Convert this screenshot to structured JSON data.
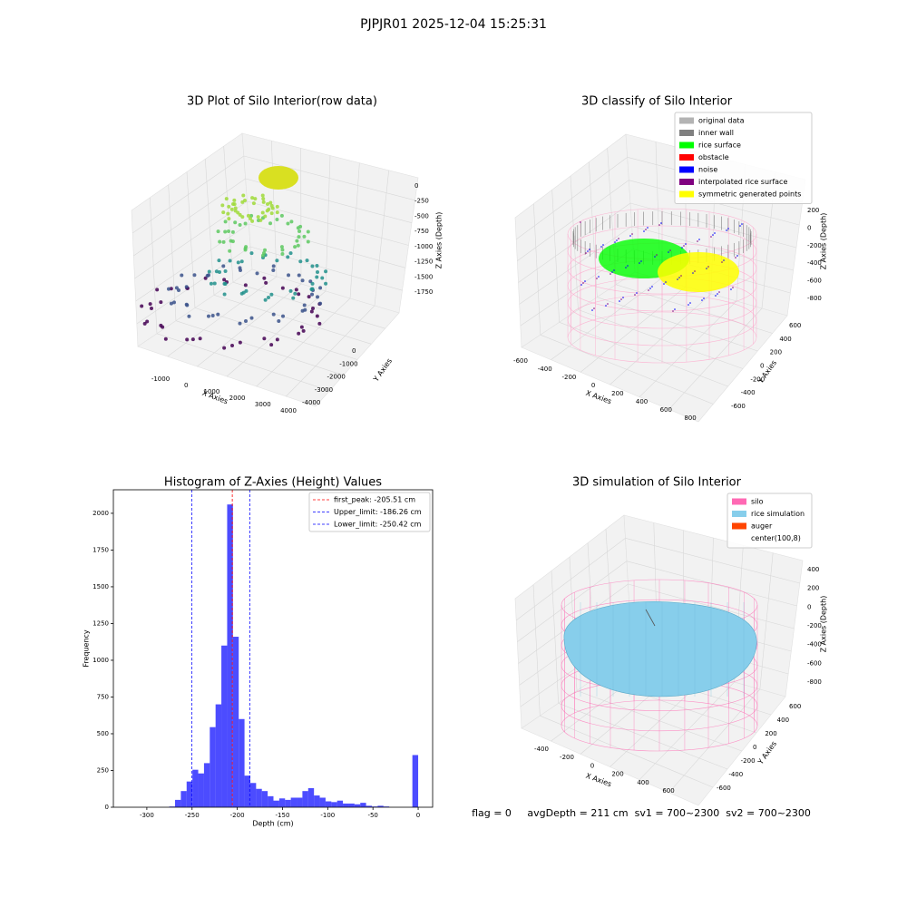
{
  "title": "PJPJR01 2025-12-04 15:25:31",
  "chart_data": [
    {
      "type": "scatter3d",
      "title": "3D Plot of Silo Interior(row data)",
      "xlabel": "X Axies",
      "ylabel": "Y Axies",
      "zlabel": "Z Axies (Depth)",
      "xticks": [
        -1000,
        0,
        1000,
        2000,
        3000,
        4000
      ],
      "yticks": [
        0,
        -1000,
        -2000,
        -3000,
        -4000
      ],
      "zticks": [
        0,
        -250,
        -500,
        -750,
        -1000,
        -1250,
        -1500,
        -1750
      ]
    },
    {
      "type": "classify3d",
      "title": "3D classify of Silo Interior",
      "xlabel": "X Axies",
      "ylabel": "Y Axies",
      "zlabel": "Z Axies (Depth)",
      "xticks": [
        -600,
        -400,
        -200,
        0,
        200,
        400,
        600,
        800
      ],
      "yticks": [
        600,
        400,
        200,
        0,
        -200,
        -400,
        -600
      ],
      "zticks": [
        200,
        0,
        -200,
        -400,
        -600,
        -800
      ],
      "legend": [
        {
          "name": "original data",
          "color": "#b3b3b3"
        },
        {
          "name": "inner wall",
          "color": "#808080"
        },
        {
          "name": "rice surface",
          "color": "#00ff00"
        },
        {
          "name": "obstacle",
          "color": "#ff0000"
        },
        {
          "name": "noise",
          "color": "#0000ff"
        },
        {
          "name": "interpolated rice surface",
          "color": "#800080"
        },
        {
          "name": "symmetric generated points",
          "color": "#ffff00"
        }
      ]
    },
    {
      "type": "histogram",
      "title": "Histogram of Z-Axies (Height) Values",
      "xlabel": "Depth (cm)",
      "ylabel": "Frequency",
      "color": "#0000ff",
      "bins": [
        -320,
        -313.6,
        -307.2,
        -300.8,
        -294.4,
        -288,
        -281.6,
        -275.2,
        -268.8,
        -262.4,
        -256,
        -249.6,
        -243.2,
        -236.8,
        -230.4,
        -224,
        -217.6,
        -211.2,
        -204.8,
        -198.4,
        -192,
        -185.6,
        -179.2,
        -172.8,
        -166.4,
        -160,
        -153.6,
        -147.2,
        -140.8,
        -134.4,
        -128,
        -121.6,
        -115.2,
        -108.8,
        -102.4,
        -96,
        -89.6,
        -83.2,
        -76.8,
        -70.4,
        -64,
        -57.6,
        -51.2,
        -44.8,
        -38.4,
        -32,
        -25.6,
        -19.2,
        -12.8,
        -6.4,
        0
      ],
      "values": [
        0,
        0,
        0,
        0,
        0,
        0,
        0,
        5,
        50,
        110,
        175,
        255,
        230,
        300,
        545,
        700,
        1100,
        2060,
        1160,
        600,
        215,
        165,
        125,
        110,
        75,
        45,
        60,
        50,
        65,
        65,
        110,
        130,
        80,
        65,
        40,
        35,
        45,
        25,
        25,
        20,
        30,
        10,
        5,
        10,
        5,
        0,
        0,
        0,
        0,
        355
      ],
      "xlim": [
        -337,
        16
      ],
      "ylim": [
        0,
        2160
      ],
      "xticks": [
        -300,
        -250,
        -200,
        -150,
        -100,
        -50,
        0
      ],
      "yticks": [
        0,
        250,
        500,
        750,
        1000,
        1250,
        1500,
        1750,
        2000
      ],
      "vlines": [
        {
          "label": "first_peak: -205.51 cm",
          "value": -205.51,
          "color": "#ff0000"
        },
        {
          "label": "Upper_limit: -186.26 cm",
          "value": -186.26,
          "color": "#0000ff"
        },
        {
          "label": "Lower_limit: -250.42 cm",
          "value": -250.42,
          "color": "#0000ff"
        }
      ]
    },
    {
      "type": "surface3d",
      "title": "3D simulation of Silo Interior",
      "xlabel": "X Axies",
      "ylabel": "Y Axies",
      "zlabel": "Z Axies (Depth)",
      "xticks": [
        -400,
        -200,
        0,
        200,
        400,
        600
      ],
      "yticks": [
        600,
        400,
        200,
        0,
        -200,
        -400,
        -600
      ],
      "zticks": [
        400,
        200,
        0,
        -200,
        -400,
        -600,
        -800
      ],
      "legend": [
        {
          "name": "silo",
          "color": "#ff69b4"
        },
        {
          "name": "rice simulation",
          "color": "#87ceeb"
        },
        {
          "name": "auger",
          "color": "#ff4500"
        },
        {
          "name": "center(100,8)",
          "color": "#ffffff"
        }
      ]
    }
  ],
  "status": "flag = 0     avgDepth = 211 cm  sv1 = 700~2300  sv2 = 700~2300"
}
